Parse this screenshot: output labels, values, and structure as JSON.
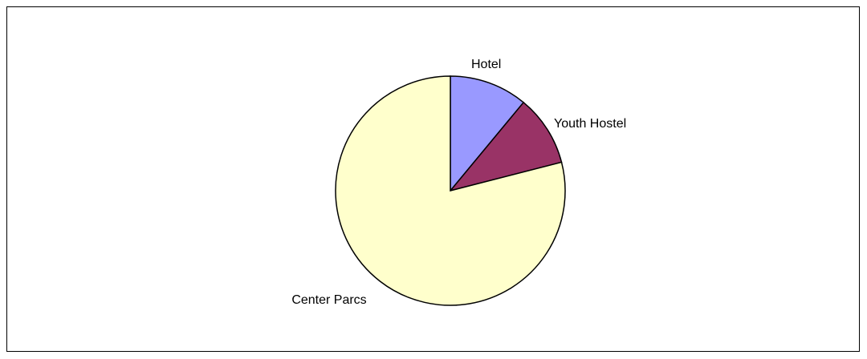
{
  "chart_data": {
    "type": "pie",
    "categories": [
      "Hotel",
      "Youth Hostel",
      "Center Parcs"
    ],
    "values": [
      11,
      10,
      79
    ],
    "colors": [
      "#9999ff",
      "#993366",
      "#ffffcc"
    ],
    "labels_shown": true,
    "legend": "none",
    "start_angle": "12 o'clock",
    "direction": "clockwise"
  }
}
